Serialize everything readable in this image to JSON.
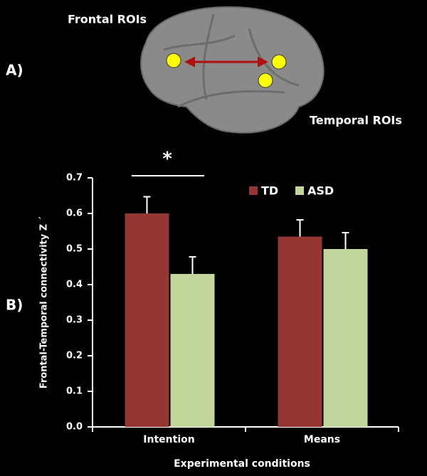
{
  "chart_data": {
    "type": "bar",
    "panel_labels": [
      "A)",
      "B)"
    ],
    "brain_labels": [
      "Frontal ROIs",
      "Temporal ROIs"
    ],
    "significance": "*",
    "y_label": "Frontal-Temporal connectivity Z ´",
    "x_label": "Experimental conditions",
    "categories": [
      "Intention",
      "Means"
    ],
    "series": [
      {
        "name": "TD",
        "color": "#943634",
        "values": [
          0.6,
          0.535
        ],
        "errors": [
          0.047,
          0.047
        ]
      },
      {
        "name": "ASD",
        "color": "#c3d69b",
        "values": [
          0.43,
          0.5
        ],
        "errors": [
          0.048,
          0.046
        ]
      }
    ],
    "ylim": [
      0,
      0.7
    ],
    "yticks": [
      {
        "value": 0,
        "label": "0.0"
      },
      0.1,
      0.2,
      0.3,
      0.4,
      0.5,
      0.6,
      0.7
    ],
    "legend": "top-right"
  }
}
